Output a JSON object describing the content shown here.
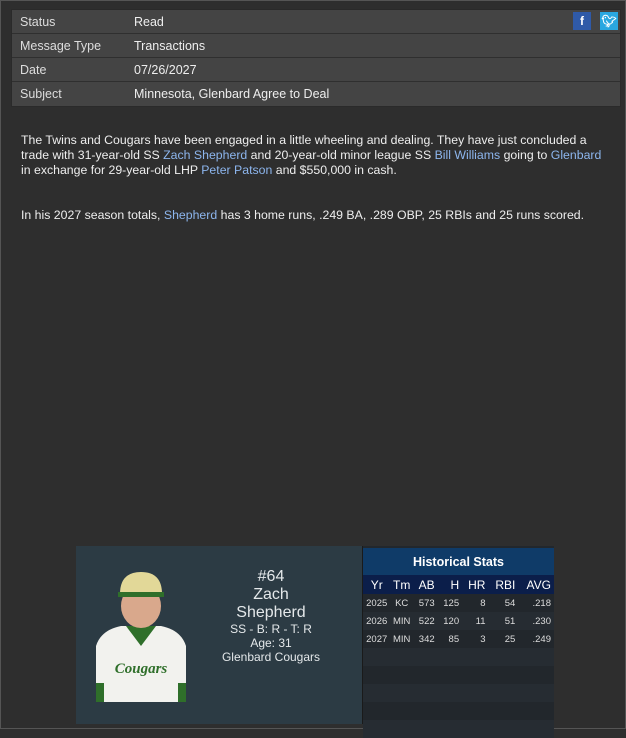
{
  "meta": [
    {
      "label": "Status",
      "value": "Read"
    },
    {
      "label": "Message Type",
      "value": "Transactions"
    },
    {
      "label": "Date",
      "value": "07/26/2027"
    },
    {
      "label": "Subject",
      "value": "Minnesota, Glenbard Agree to Deal"
    }
  ],
  "social": {
    "facebook": "f",
    "twitter": "t"
  },
  "article": {
    "p1": [
      "The Twins and Cougars have been engaged in a little wheeling and dealing. They have just concluded a trade with 31-year-old SS ",
      "Zach Shepherd",
      " and 20-year-old  minor league SS ",
      "Bill Williams",
      " going to ",
      "Glenbard",
      " in exchange for 29-year-old LHP ",
      "Peter Patson",
      " and $550,000 in cash."
    ],
    "p2": [
      "In his 2027 season totals, ",
      "Shepherd",
      " has 3 home runs, .249 BA, .289 OBP, 25 RBIs and 25 runs scored."
    ]
  },
  "player": {
    "number": "#64",
    "first": "Zach",
    "last": "Shepherd",
    "pos": "SS - B: R - T: R",
    "age": "Age: 31",
    "team": "Glenbard Cougars",
    "jersey_text": "Cougars"
  },
  "stats": {
    "title": "Historical Stats",
    "headers": [
      "Yr",
      "Tm",
      "AB",
      "H",
      "HR",
      "RBI",
      "AVG"
    ],
    "rows": [
      [
        "2025",
        "KC",
        "573",
        "125",
        "8",
        "54",
        ".218"
      ],
      [
        "2026",
        "MIN",
        "522",
        "120",
        "11",
        "51",
        ".230"
      ],
      [
        "2027",
        "MIN",
        "342",
        "85",
        "3",
        "25",
        ".249"
      ]
    ]
  }
}
